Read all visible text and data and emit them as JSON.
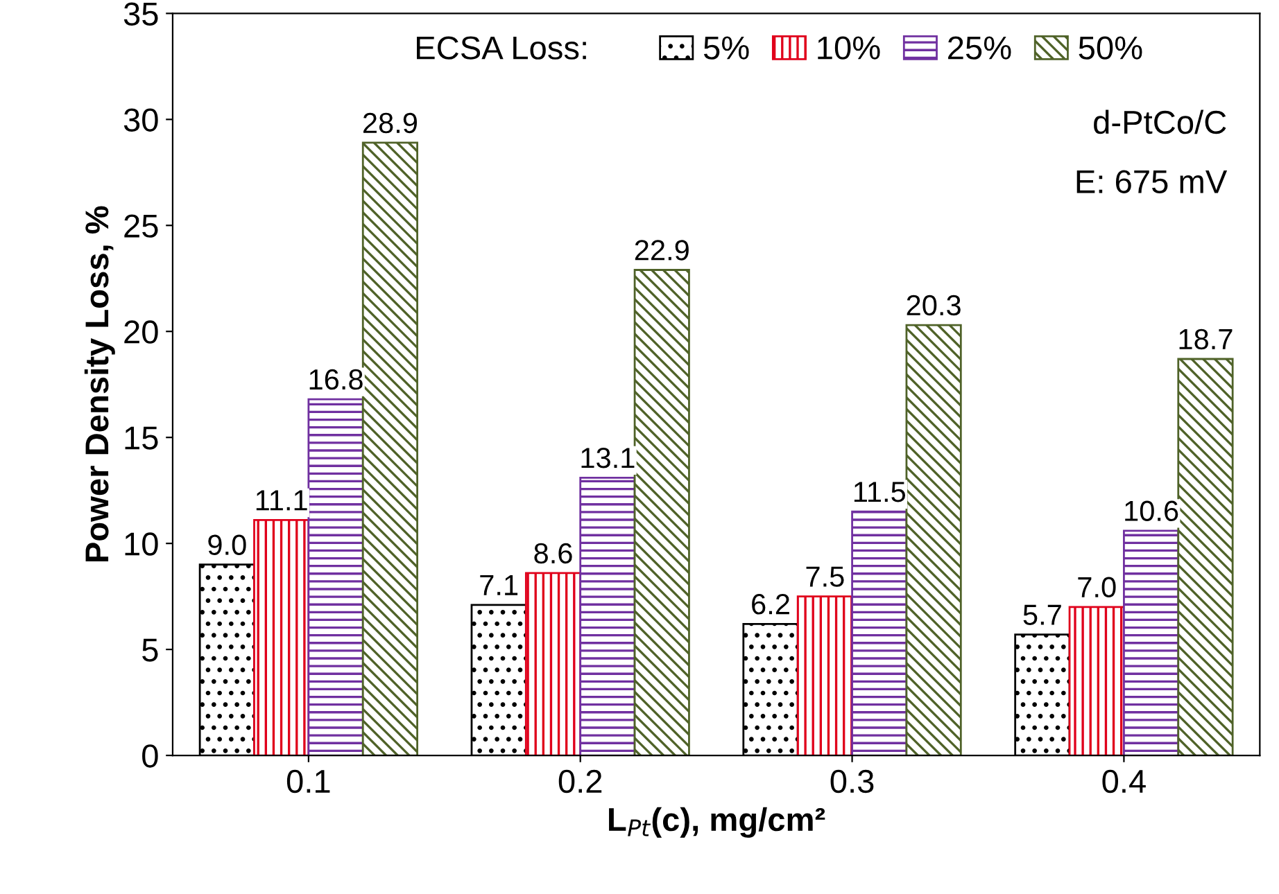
{
  "chart_data": {
    "type": "bar",
    "xlabel": "L$_{Pt}$(c), mg/cm²",
    "ylabel": "Power Density Loss, %",
    "legend_title": "ECSA Loss:",
    "categories": [
      "0.1",
      "0.2",
      "0.3",
      "0.4"
    ],
    "series": [
      {
        "name": "5%",
        "color": "#000000",
        "values": [
          9.0,
          7.1,
          6.2,
          5.7
        ],
        "value_labels": [
          "9.0",
          "7.1",
          "6.2",
          "5.7"
        ]
      },
      {
        "name": "10%",
        "color": "#e0001b",
        "values": [
          11.1,
          8.6,
          7.5,
          7.0
        ],
        "value_labels": [
          "11.1",
          "8.6",
          "7.5",
          "7.0"
        ]
      },
      {
        "name": "25%",
        "color": "#7030a0",
        "values": [
          16.8,
          13.1,
          11.5,
          10.6
        ],
        "value_labels": [
          "16.8",
          "13.1",
          "11.5",
          "10.6"
        ]
      },
      {
        "name": "50%",
        "color": "#4f6228",
        "values": [
          28.9,
          22.9,
          20.3,
          18.7
        ],
        "value_labels": [
          "28.9",
          "22.9",
          "20.3",
          "18.7"
        ]
      }
    ],
    "ylim": [
      0,
      35
    ],
    "yticks": [
      0,
      5,
      10,
      15,
      20,
      25,
      30,
      35
    ],
    "legend": "top",
    "grid": false,
    "annotations": [
      "d-PtCo/C",
      "E: 675 mV"
    ]
  }
}
